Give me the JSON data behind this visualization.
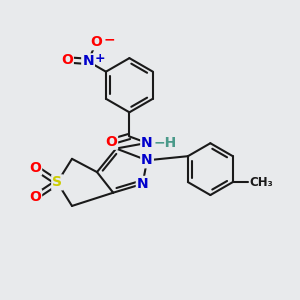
{
  "bg_color": "#e8eaec",
  "bond_color": "#1a1a1a",
  "atom_colors": {
    "O": "#ff0000",
    "N": "#0000cc",
    "S": "#cccc00",
    "H": "#4a9a8a",
    "C": "#1a1a1a"
  },
  "line_width": 1.5,
  "font_size_atom": 10,
  "font_size_small": 8.5
}
